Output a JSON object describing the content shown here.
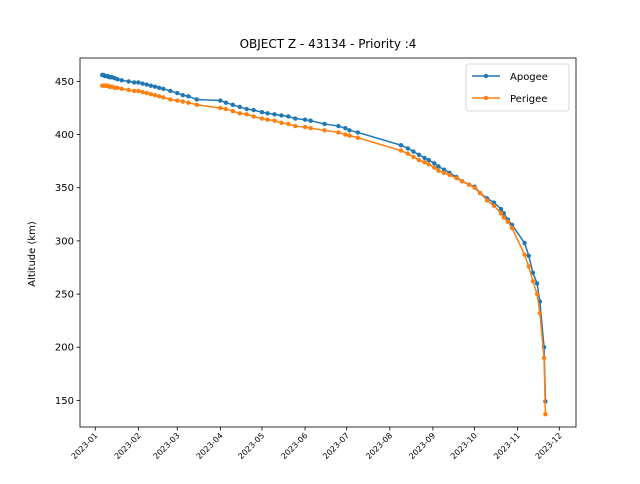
{
  "chart_data": {
    "type": "line",
    "title": "OBJECT Z - 43134 - Priority :4",
    "xlabel": "",
    "ylabel": "Altitude (km)",
    "xlim": [
      "2022-12-21",
      "2023-12-13"
    ],
    "ylim": [
      125,
      472
    ],
    "x_ticks": [
      "2023-01-01",
      "2023-02-01",
      "2023-03-01",
      "2023-04-01",
      "2023-05-01",
      "2023-06-01",
      "2023-07-01",
      "2023-08-01",
      "2023-09-01",
      "2023-10-01",
      "2023-11-01",
      "2023-12-01"
    ],
    "x_tick_labels": [
      "2023-01",
      "2023-02",
      "2023-03",
      "2023-04",
      "2023-05",
      "2023-06",
      "2023-07",
      "2023-08",
      "2023-09",
      "2023-10",
      "2023-11",
      "2023-12"
    ],
    "y_ticks": [
      150,
      200,
      250,
      300,
      350,
      400,
      450
    ],
    "grid": false,
    "legend": {
      "placement": "top-right"
    },
    "series": [
      {
        "name": "Apogee",
        "color": "#1f77b4",
        "x": [
          "2023-01-06",
          "2023-01-07",
          "2023-01-08",
          "2023-01-09",
          "2023-01-10",
          "2023-01-11",
          "2023-01-12",
          "2023-01-13",
          "2023-01-15",
          "2023-01-17",
          "2023-01-20",
          "2023-01-25",
          "2023-01-29",
          "2023-02-01",
          "2023-02-04",
          "2023-02-07",
          "2023-02-10",
          "2023-02-13",
          "2023-02-16",
          "2023-02-19",
          "2023-02-24",
          "2023-03-01",
          "2023-03-05",
          "2023-03-09",
          "2023-03-15",
          "2023-04-01",
          "2023-04-05",
          "2023-04-10",
          "2023-04-15",
          "2023-04-20",
          "2023-04-25",
          "2023-05-01",
          "2023-05-05",
          "2023-05-10",
          "2023-05-15",
          "2023-05-20",
          "2023-05-25",
          "2023-06-01",
          "2023-06-05",
          "2023-06-15",
          "2023-06-25",
          "2023-06-30",
          "2023-07-03",
          "2023-07-09",
          "2023-08-09",
          "2023-08-14",
          "2023-08-18",
          "2023-08-22",
          "2023-08-26",
          "2023-08-29",
          "2023-09-02",
          "2023-09-05",
          "2023-09-09",
          "2023-09-13",
          "2023-09-18",
          "2023-09-22",
          "2023-09-27",
          "2023-10-01",
          "2023-10-05",
          "2023-10-10",
          "2023-10-15",
          "2023-10-20",
          "2023-10-22",
          "2023-10-25",
          "2023-10-28",
          "2023-11-06",
          "2023-11-09",
          "2023-11-12",
          "2023-11-15",
          "2023-11-17",
          "2023-11-20",
          "2023-11-21"
        ],
        "values": [
          456,
          456,
          455,
          455,
          455,
          454,
          454,
          454,
          453,
          452,
          451,
          450,
          449,
          449,
          448,
          447,
          446,
          445,
          444,
          443,
          441,
          439,
          437,
          436,
          433,
          432,
          430,
          428,
          426,
          424,
          423,
          421,
          420,
          419,
          418,
          417,
          415,
          414,
          413,
          410,
          408,
          406,
          404,
          402,
          390,
          387,
          384,
          381,
          378,
          376,
          373,
          370,
          367,
          364,
          360,
          356,
          353,
          351,
          345,
          340,
          336,
          330,
          326,
          320,
          315,
          298,
          286,
          270,
          260,
          243,
          200,
          149
        ]
      },
      {
        "name": "Perigee",
        "color": "#ff7f0e",
        "x": [
          "2023-01-06",
          "2023-01-07",
          "2023-01-08",
          "2023-01-09",
          "2023-01-10",
          "2023-01-11",
          "2023-01-12",
          "2023-01-13",
          "2023-01-15",
          "2023-01-17",
          "2023-01-20",
          "2023-01-25",
          "2023-01-29",
          "2023-02-01",
          "2023-02-04",
          "2023-02-07",
          "2023-02-10",
          "2023-02-13",
          "2023-02-16",
          "2023-02-19",
          "2023-02-24",
          "2023-03-01",
          "2023-03-05",
          "2023-03-09",
          "2023-03-15",
          "2023-04-01",
          "2023-04-05",
          "2023-04-10",
          "2023-04-15",
          "2023-04-20",
          "2023-04-25",
          "2023-05-01",
          "2023-05-05",
          "2023-05-10",
          "2023-05-15",
          "2023-05-20",
          "2023-05-25",
          "2023-06-01",
          "2023-06-05",
          "2023-06-15",
          "2023-06-25",
          "2023-06-30",
          "2023-07-03",
          "2023-07-09",
          "2023-08-09",
          "2023-08-14",
          "2023-08-18",
          "2023-08-22",
          "2023-08-26",
          "2023-08-29",
          "2023-09-02",
          "2023-09-05",
          "2023-09-09",
          "2023-09-13",
          "2023-09-18",
          "2023-09-22",
          "2023-09-27",
          "2023-10-01",
          "2023-10-05",
          "2023-10-10",
          "2023-10-15",
          "2023-10-20",
          "2023-10-22",
          "2023-10-25",
          "2023-10-28",
          "2023-11-06",
          "2023-11-09",
          "2023-11-12",
          "2023-11-15",
          "2023-11-17",
          "2023-11-20",
          "2023-11-21"
        ],
        "values": [
          446,
          446,
          446,
          446,
          446,
          445,
          445,
          445,
          444,
          444,
          443,
          442,
          441,
          441,
          440,
          439,
          438,
          437,
          436,
          435,
          433,
          432,
          431,
          430,
          428,
          425,
          424,
          422,
          420,
          419,
          417,
          415,
          414,
          413,
          411,
          410,
          408,
          407,
          406,
          404,
          402,
          400,
          399,
          397,
          385,
          382,
          379,
          376,
          374,
          372,
          369,
          366,
          364,
          362,
          359,
          356,
          353,
          350,
          345,
          338,
          333,
          326,
          322,
          318,
          312,
          287,
          276,
          262,
          250,
          232,
          190,
          137
        ]
      }
    ]
  }
}
